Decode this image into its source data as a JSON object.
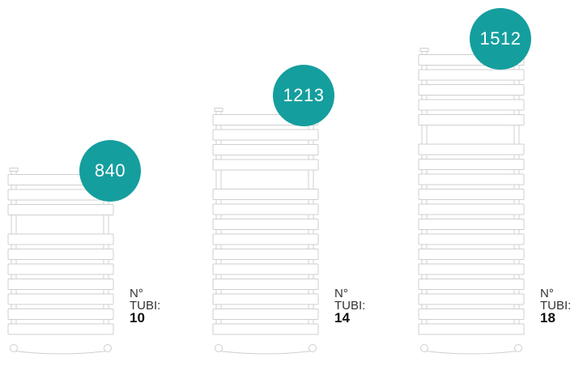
{
  "colors": {
    "accent": "#159e9e",
    "outline": "#cfcfcf"
  },
  "models": [
    {
      "height_label": "840",
      "tube_label_line1": "N°",
      "tube_label_line2": "TUBI:",
      "tube_count": "10",
      "tubes": 10
    },
    {
      "height_label": "1213",
      "tube_label_line1": "N°",
      "tube_label_line2": "TUBI:",
      "tube_count": "14",
      "tubes": 14
    },
    {
      "height_label": "1512",
      "tube_label_line1": "N°",
      "tube_label_line2": "TUBI:",
      "tube_count": "18",
      "tubes": 18
    }
  ]
}
